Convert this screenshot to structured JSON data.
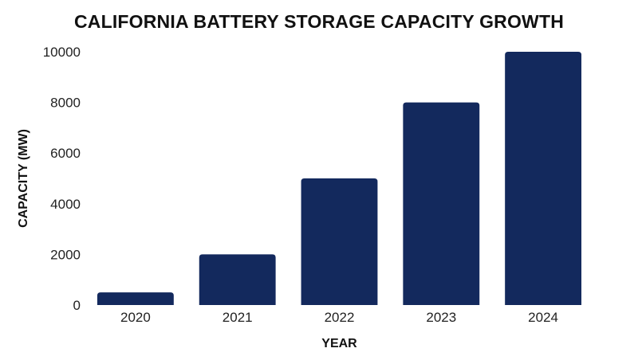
{
  "chart_data": {
    "type": "bar",
    "title": "CALIFORNIA BATTERY STORAGE CAPACITY GROWTH",
    "xlabel": "YEAR",
    "ylabel": "CAPACITY (MW)",
    "categories": [
      "2020",
      "2021",
      "2022",
      "2023",
      "2024"
    ],
    "values": [
      500,
      2000,
      5000,
      8000,
      10000
    ],
    "ylim": [
      0,
      10000
    ],
    "yticks": [
      0,
      2000,
      4000,
      6000,
      8000,
      10000
    ],
    "ytick_labels": [
      "0",
      "2000",
      "4000",
      "6000",
      "8000",
      "10000"
    ],
    "grid": false,
    "legend": "none",
    "bar_color": "#13295d"
  }
}
